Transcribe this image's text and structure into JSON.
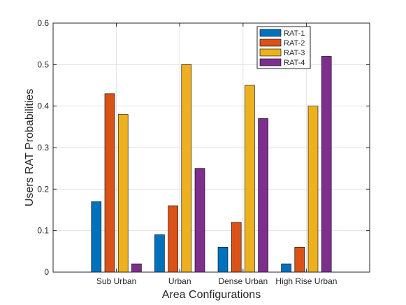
{
  "chart_data": {
    "type": "bar",
    "title": "",
    "xlabel": "Area Configurations",
    "ylabel": "Users RAT Probabilities",
    "ylim": [
      0,
      0.6
    ],
    "yticks": [
      "0",
      "0.1",
      "0.2",
      "0.3",
      "0.4",
      "0.5",
      "0.6"
    ],
    "grid": true,
    "legend_position": "top-right",
    "categories": [
      "Sub Urban",
      "Urban",
      "Dense Urban",
      "High Rise Urban"
    ],
    "series": [
      {
        "name": "RAT-1",
        "color": "#0072BD",
        "values": [
          0.17,
          0.09,
          0.06,
          0.02
        ]
      },
      {
        "name": "RAT-2",
        "color": "#D95319",
        "values": [
          0.43,
          0.16,
          0.12,
          0.06
        ]
      },
      {
        "name": "RAT-3",
        "color": "#EDB120",
        "values": [
          0.38,
          0.5,
          0.45,
          0.4
        ]
      },
      {
        "name": "RAT-4",
        "color": "#7E2F8E",
        "values": [
          0.02,
          0.25,
          0.37,
          0.52
        ]
      }
    ]
  }
}
